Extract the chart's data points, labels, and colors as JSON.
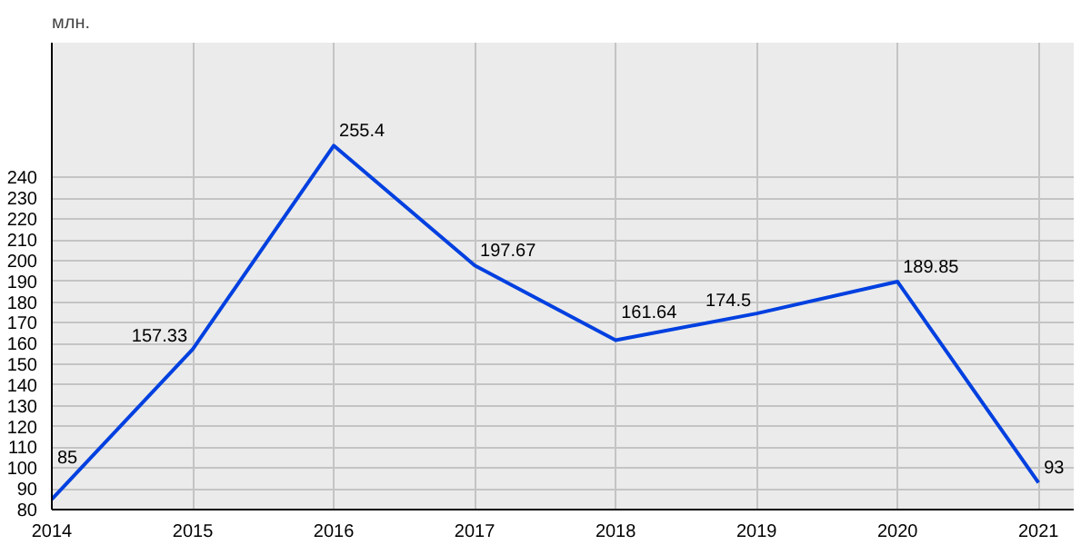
{
  "chart_data": {
    "type": "line",
    "ylabel": "млн.",
    "x": [
      2014,
      2015,
      2016,
      2017,
      2018,
      2019,
      2020,
      2021
    ],
    "series": [
      {
        "color": "#0040e0",
        "values": [
          85,
          157.33,
          255.4,
          197.67,
          161.64,
          174.5,
          189.85,
          93
        ]
      }
    ],
    "xlim": [
      2014,
      2021.25
    ],
    "xticks": [
      2014,
      2015,
      2016,
      2017,
      2018,
      2019,
      2020,
      2021
    ],
    "ylim": [
      80,
      305
    ],
    "yticks": [
      80,
      90,
      100,
      110,
      120,
      130,
      140,
      150,
      160,
      170,
      180,
      190,
      200,
      210,
      220,
      230,
      240
    ],
    "grid": true,
    "data_labels": true,
    "marker": "none",
    "line_style": "solid"
  }
}
